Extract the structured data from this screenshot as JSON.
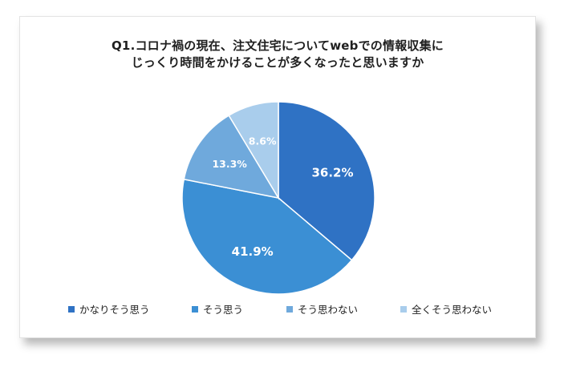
{
  "chart_data": {
    "type": "pie",
    "title_lines": [
      "Q1.コロナ禍の現在、注文住宅についてwebでの情報収集に",
      "じっくり時間をかけることが多くなったと思いますか"
    ],
    "slices": [
      {
        "label": "かなりそう思う",
        "value": 36.2,
        "value_label": "36.2%",
        "color": "#2f72c4"
      },
      {
        "label": "そう思う",
        "value": 41.9,
        "value_label": "41.9%",
        "color": "#3b8fd4"
      },
      {
        "label": "そう思わない",
        "value": 13.3,
        "value_label": "13.3%",
        "color": "#6fa9dc"
      },
      {
        "label": "全くそう思わない",
        "value": 8.6,
        "value_label": "8.6%",
        "color": "#a9cdec"
      }
    ],
    "start_angle_deg": 0,
    "direction": "clockwise",
    "legend_position": "bottom"
  }
}
